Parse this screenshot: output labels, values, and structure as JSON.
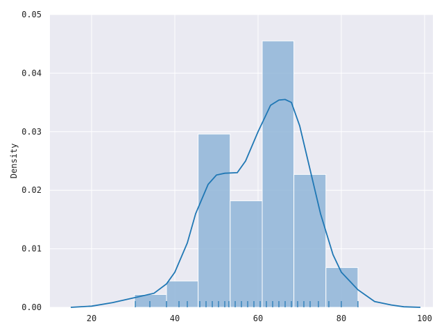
{
  "chart_data": {
    "type": "histogram",
    "title": "",
    "xlabel": "",
    "ylabel": "Density",
    "xlim": [
      10,
      102
    ],
    "ylim": [
      0,
      0.05
    ],
    "xticks": [
      20,
      40,
      60,
      80,
      100
    ],
    "yticks": [
      0.0,
      0.01,
      0.02,
      0.03,
      0.04,
      0.05
    ],
    "ytick_labels": [
      "0.00",
      "0.01",
      "0.02",
      "0.03",
      "0.04",
      "0.05"
    ],
    "grid": true,
    "bins": [
      {
        "x0": 30.3,
        "x1": 38.0,
        "density": 0.0022
      },
      {
        "x0": 38.0,
        "x1": 45.6,
        "density": 0.0045
      },
      {
        "x0": 45.6,
        "x1": 53.3,
        "density": 0.0296
      },
      {
        "x0": 53.3,
        "x1": 61.0,
        "density": 0.0182
      },
      {
        "x0": 61.0,
        "x1": 68.6,
        "density": 0.0455
      },
      {
        "x0": 68.6,
        "x1": 76.3,
        "density": 0.0227
      },
      {
        "x0": 76.3,
        "x1": 84.0,
        "density": 0.0068
      }
    ],
    "kde": {
      "x": [
        15,
        20,
        25,
        30,
        35,
        38,
        40,
        43,
        45,
        48,
        50,
        52,
        55,
        57,
        60,
        63,
        65,
        66.5,
        68,
        70,
        72,
        75,
        78,
        80,
        84,
        88,
        92,
        95,
        99
      ],
      "y": [
        0.0,
        0.0002,
        0.0008,
        0.0016,
        0.0024,
        0.004,
        0.006,
        0.011,
        0.016,
        0.021,
        0.0226,
        0.0229,
        0.023,
        0.025,
        0.03,
        0.0345,
        0.0354,
        0.0355,
        0.035,
        0.031,
        0.025,
        0.016,
        0.009,
        0.006,
        0.003,
        0.001,
        0.0004,
        0.0001,
        0.0
      ]
    },
    "rug": [
      30.5,
      34,
      38,
      41,
      43,
      46,
      47.5,
      49,
      50.5,
      52,
      53,
      54.5,
      56,
      57.5,
      59,
      60.5,
      62,
      63.5,
      65,
      66.5,
      68,
      69.5,
      71,
      72.5,
      74.5,
      77,
      80,
      84
    ],
    "colors": {
      "background": "#eaeaf2",
      "grid": "#ffffff",
      "bar_fill": "#8fb5d8",
      "bar_edge": "#ffffff",
      "kde_line": "#1f77b4",
      "rug": "#1f77b4"
    }
  }
}
